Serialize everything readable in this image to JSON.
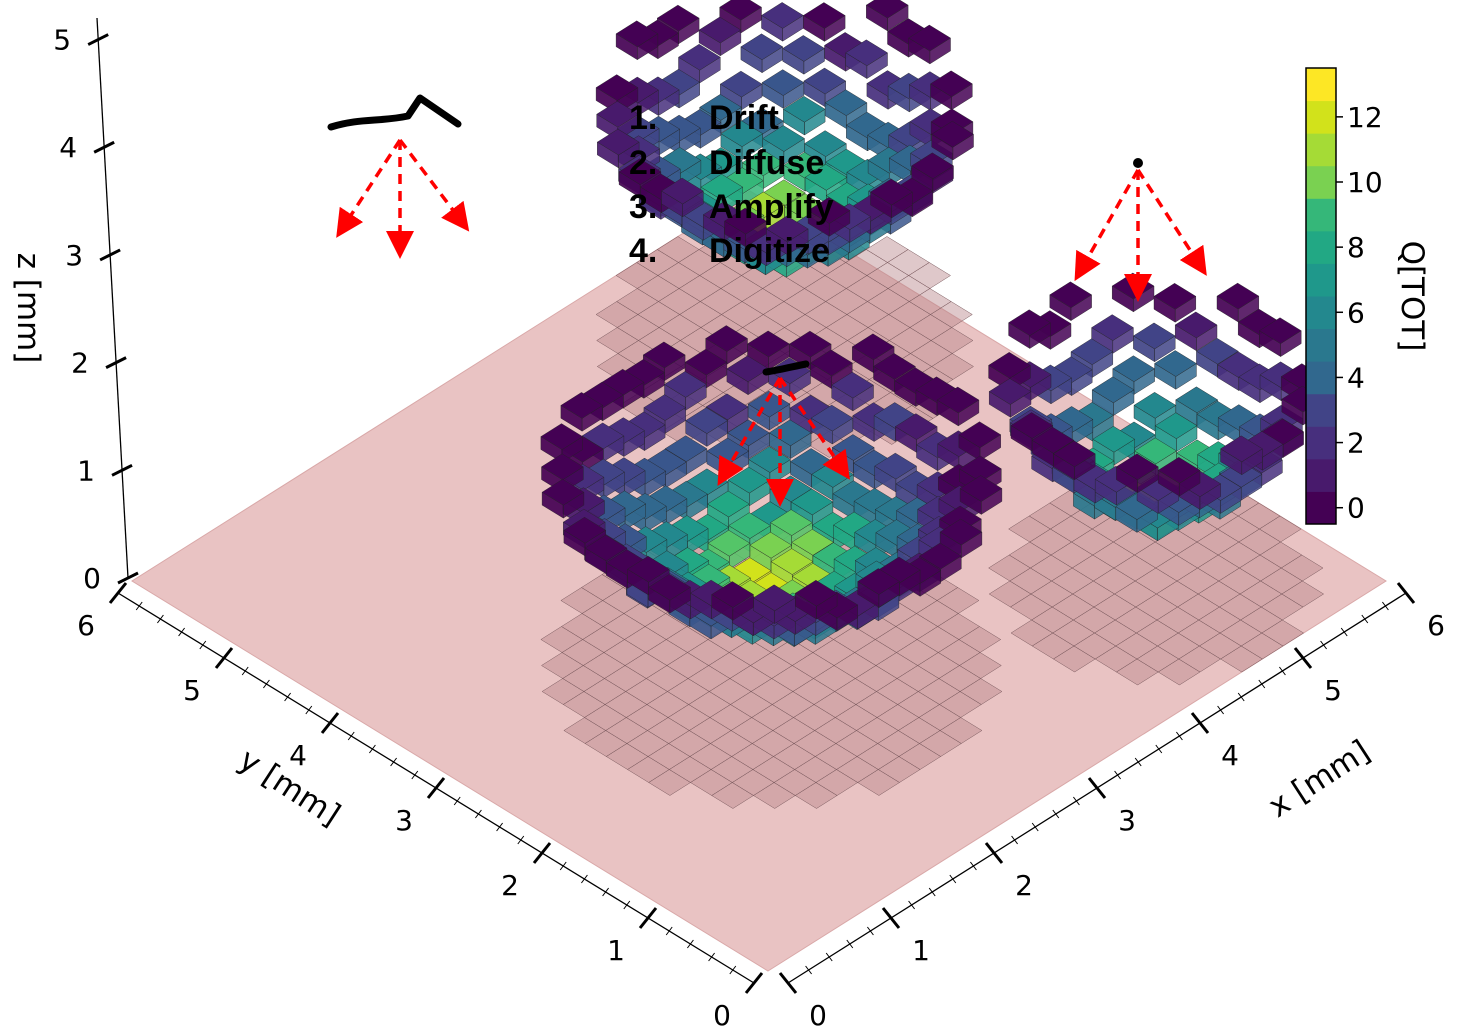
{
  "steps": [
    {
      "num": "1.",
      "text": "Drift"
    },
    {
      "num": "2.",
      "text": "Diffuse"
    },
    {
      "num": "3.",
      "text": "Amplify"
    },
    {
      "num": "4.",
      "text": "Digitize"
    }
  ],
  "axes": {
    "x": {
      "label": "x [mm]",
      "ticks": [
        "0",
        "1",
        "2",
        "3",
        "4",
        "5",
        "6"
      ]
    },
    "y": {
      "label": "y [mm]",
      "ticks": [
        "0",
        "1",
        "2",
        "3",
        "4",
        "5",
        "6"
      ]
    },
    "z": {
      "label": "z [mm]",
      "ticks": [
        "0",
        "1",
        "2",
        "3",
        "4",
        "5"
      ]
    }
  },
  "colorbar": {
    "label": "Q[TOT]",
    "ticks": [
      "0",
      "2",
      "4",
      "6",
      "8",
      "10",
      "12"
    ],
    "range": [
      -0.5,
      13.5
    ],
    "colormap": "viridis"
  },
  "colors": {
    "plane": "#e8c0c0",
    "arrow": "#ff0000",
    "track": "#000000",
    "viridis": [
      "#440154",
      "#481a6c",
      "#472f7d",
      "#414487",
      "#39568c",
      "#31688e",
      "#2a788e",
      "#23888e",
      "#1f988b",
      "#22a884",
      "#35b779",
      "#54c568",
      "#7ad151",
      "#a5db36",
      "#d2e21b",
      "#fde725"
    ]
  }
}
